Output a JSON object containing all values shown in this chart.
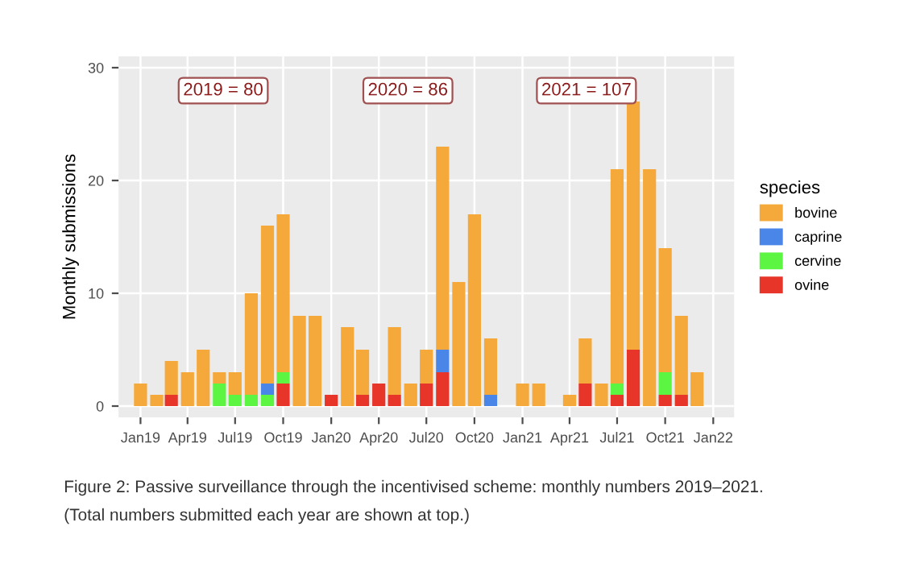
{
  "chart_data": {
    "type": "bar",
    "stacked": true,
    "ylabel": "Monthly submissions",
    "legend_title": "species",
    "x": [
      "2019-01",
      "2019-02",
      "2019-03",
      "2019-04",
      "2019-05",
      "2019-06",
      "2019-07",
      "2019-08",
      "2019-09",
      "2019-10",
      "2019-11",
      "2019-12",
      "2020-01",
      "2020-02",
      "2020-03",
      "2020-04",
      "2020-05",
      "2020-06",
      "2020-07",
      "2020-08",
      "2020-09",
      "2020-10",
      "2020-11",
      "2020-12",
      "2021-01",
      "2021-02",
      "2021-03",
      "2021-04",
      "2021-05",
      "2021-06",
      "2021-07",
      "2021-08",
      "2021-09",
      "2021-10",
      "2021-11",
      "2021-12"
    ],
    "series": [
      {
        "name": "ovine",
        "color": "#e8352a",
        "values": [
          0,
          0,
          1,
          0,
          0,
          0,
          0,
          0,
          0,
          2,
          0,
          0,
          1,
          0,
          1,
          2,
          1,
          0,
          2,
          3,
          0,
          0,
          0,
          0,
          0,
          0,
          0,
          0,
          2,
          0,
          1,
          5,
          0,
          1,
          1,
          0
        ]
      },
      {
        "name": "cervine",
        "color": "#5cf542",
        "values": [
          0,
          0,
          0,
          0,
          0,
          2,
          1,
          1,
          1,
          1,
          0,
          0,
          0,
          0,
          0,
          0,
          0,
          0,
          0,
          0,
          0,
          0,
          0,
          0,
          0,
          0,
          0,
          0,
          0,
          0,
          1,
          0,
          0,
          2,
          0,
          0
        ]
      },
      {
        "name": "caprine",
        "color": "#4a86e8",
        "values": [
          0,
          0,
          0,
          0,
          0,
          0,
          0,
          0,
          1,
          0,
          0,
          0,
          0,
          0,
          0,
          0,
          0,
          0,
          0,
          2,
          0,
          0,
          1,
          0,
          0,
          0,
          0,
          0,
          0,
          0,
          0,
          0,
          0,
          0,
          0,
          0
        ]
      },
      {
        "name": "bovine",
        "color": "#f5a93a",
        "values": [
          2,
          1,
          3,
          3,
          5,
          1,
          2,
          9,
          14,
          14,
          8,
          8,
          0,
          7,
          4,
          0,
          6,
          2,
          3,
          18,
          11,
          17,
          5,
          0,
          2,
          2,
          0,
          1,
          4,
          2,
          19,
          22,
          21,
          11,
          7,
          3
        ]
      }
    ],
    "xlim": [
      "2018-11-20",
      "2022-02-10"
    ],
    "xticks": [
      {
        "value": "2019-01",
        "label": "Jan19"
      },
      {
        "value": "2019-04",
        "label": "Apr19"
      },
      {
        "value": "2019-07",
        "label": "Jul19"
      },
      {
        "value": "2019-10",
        "label": "Oct19"
      },
      {
        "value": "2020-01",
        "label": "Jan20"
      },
      {
        "value": "2020-04",
        "label": "Apr20"
      },
      {
        "value": "2020-07",
        "label": "Jul20"
      },
      {
        "value": "2020-10",
        "label": "Oct20"
      },
      {
        "value": "2021-01",
        "label": "Jan21"
      },
      {
        "value": "2021-04",
        "label": "Apr21"
      },
      {
        "value": "2021-07",
        "label": "Jul21"
      },
      {
        "value": "2021-10",
        "label": "Oct21"
      },
      {
        "value": "2022-01",
        "label": "Jan22"
      }
    ],
    "ylim": [
      -1,
      31
    ],
    "yticks": [
      0,
      10,
      20,
      30
    ],
    "grid": true,
    "legend": "right",
    "annotations": [
      "2019 = 80",
      "2020 = 86",
      "2021 = 107",
      "Figure 2: Passive surveillance through the incentivised scheme: monthly numbers 2019–2021.",
      "(Total numbers submitted each year are shown at top.)"
    ]
  }
}
